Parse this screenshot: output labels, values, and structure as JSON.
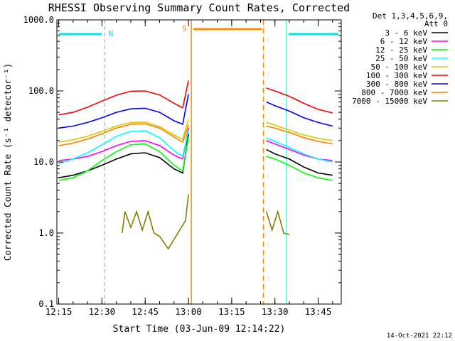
{
  "title": "RHESSI Observing Summary Count Rates, Corrected",
  "footer_date": "14-Oct-2021 22:12",
  "legend": {
    "header_line1": "Det 1,3,4,5,6,9,",
    "header_line2": "Att 0"
  },
  "colors": {
    "night_marker": "#00e5ee",
    "saa_marker": "#ff8c00",
    "axes": "#000000"
  },
  "markers": {
    "night_label": "N",
    "saa_label": "S"
  },
  "chart_data": {
    "type": "line",
    "title": "RHESSI Observing Summary Count Rates, Corrected",
    "xlabel": "Start Time (03-Jun-09 12:14:22)",
    "ylabel": "Corrected Count Rate (s⁻¹ detector⁻¹)",
    "xlim": [
      "12:14:22",
      "13:53:00"
    ],
    "ylim": [
      0.1,
      1000.0
    ],
    "y_scale": "log",
    "x_ticks": [
      "12:15",
      "12:30",
      "12:45",
      "13:00",
      "13:15",
      "13:30",
      "13:45"
    ],
    "y_ticks": [
      "0.1",
      "1.0",
      "10.0",
      "100.0",
      "1000.0"
    ],
    "legend_position": "top-right, outside plot",
    "gaps": [
      [
        "13:01:00",
        "13:27:00"
      ]
    ],
    "night_intervals": [
      [
        "12:14:22",
        "12:31:00"
      ],
      [
        "13:34:00",
        "13:53:00"
      ]
    ],
    "saa_interval": [
      "13:01:00",
      "13:26:00"
    ],
    "series": [
      {
        "name": "3 - 6 keV",
        "color": "#000000",
        "points": [
          [
            "12:15",
            6.0
          ],
          [
            "12:20",
            6.5
          ],
          [
            "12:25",
            7.5
          ],
          [
            "12:30",
            9.0
          ],
          [
            "12:35",
            11.0
          ],
          [
            "12:40",
            13.0
          ],
          [
            "12:45",
            13.5
          ],
          [
            "12:50",
            11.5
          ],
          [
            "12:55",
            8.0
          ],
          [
            "12:58",
            7.0
          ],
          [
            "13:00",
            25.0
          ],
          [
            "13:27",
            15.0
          ],
          [
            "13:30",
            13.0
          ],
          [
            "13:35",
            11.0
          ],
          [
            "13:40",
            8.5
          ],
          [
            "13:45",
            7.0
          ],
          [
            "13:50",
            6.5
          ]
        ]
      },
      {
        "name": "6 - 12 keV",
        "color": "#ff00ff",
        "points": [
          [
            "12:15",
            10.5
          ],
          [
            "12:20",
            11.0
          ],
          [
            "12:25",
            12.0
          ],
          [
            "12:30",
            14.0
          ],
          [
            "12:35",
            17.0
          ],
          [
            "12:40",
            19.5
          ],
          [
            "12:45",
            20.0
          ],
          [
            "12:50",
            17.0
          ],
          [
            "12:55",
            12.5
          ],
          [
            "12:58",
            11.0
          ],
          [
            "13:00",
            30.0
          ],
          [
            "13:27",
            20.0
          ],
          [
            "13:30",
            18.0
          ],
          [
            "13:35",
            15.0
          ],
          [
            "13:40",
            12.5
          ],
          [
            "13:45",
            11.0
          ],
          [
            "13:50",
            10.5
          ]
        ]
      },
      {
        "name": "12 - 25 keV",
        "color": "#00ff00",
        "points": [
          [
            "12:15",
            5.5
          ],
          [
            "12:20",
            6.0
          ],
          [
            "12:25",
            7.5
          ],
          [
            "12:30",
            10.5
          ],
          [
            "12:35",
            14.0
          ],
          [
            "12:40",
            17.5
          ],
          [
            "12:45",
            18.0
          ],
          [
            "12:50",
            14.0
          ],
          [
            "12:55",
            9.0
          ],
          [
            "12:58",
            7.5
          ],
          [
            "13:00",
            22.0
          ],
          [
            "13:27",
            12.0
          ],
          [
            "13:30",
            11.0
          ],
          [
            "13:35",
            9.0
          ],
          [
            "13:40",
            7.0
          ],
          [
            "13:45",
            6.0
          ],
          [
            "13:50",
            5.5
          ]
        ]
      },
      {
        "name": "25 - 50 keV",
        "color": "#00ffff",
        "points": [
          [
            "12:15",
            9.5
          ],
          [
            "12:20",
            11.0
          ],
          [
            "12:25",
            13.5
          ],
          [
            "12:30",
            17.5
          ],
          [
            "12:35",
            23.0
          ],
          [
            "12:40",
            27.0
          ],
          [
            "12:45",
            27.5
          ],
          [
            "12:50",
            22.0
          ],
          [
            "12:55",
            14.5
          ],
          [
            "12:58",
            12.0
          ],
          [
            "13:00",
            28.0
          ],
          [
            "13:27",
            22.0
          ],
          [
            "13:30",
            19.5
          ],
          [
            "13:35",
            16.0
          ],
          [
            "13:40",
            13.0
          ],
          [
            "13:45",
            11.0
          ],
          [
            "13:50",
            10.0
          ]
        ]
      },
      {
        "name": "50 - 100 keV",
        "color": "#d8c800",
        "points": [
          [
            "12:15",
            19.0
          ],
          [
            "12:20",
            20.5
          ],
          [
            "12:25",
            23.0
          ],
          [
            "12:30",
            27.0
          ],
          [
            "12:35",
            32.0
          ],
          [
            "12:40",
            36.0
          ],
          [
            "12:45",
            36.5
          ],
          [
            "12:50",
            31.5
          ],
          [
            "12:55",
            24.0
          ],
          [
            "12:58",
            21.0
          ],
          [
            "13:00",
            40.0
          ],
          [
            "13:27",
            36.0
          ],
          [
            "13:30",
            33.0
          ],
          [
            "13:35",
            28.0
          ],
          [
            "13:40",
            24.0
          ],
          [
            "13:45",
            21.5
          ],
          [
            "13:50",
            20.0
          ]
        ]
      },
      {
        "name": "100 - 300 keV",
        "color": "#ff0000",
        "points": [
          [
            "12:15",
            46.0
          ],
          [
            "12:20",
            50.0
          ],
          [
            "12:25",
            59.0
          ],
          [
            "12:30",
            72.0
          ],
          [
            "12:35",
            87.0
          ],
          [
            "12:40",
            99.0
          ],
          [
            "12:45",
            100.0
          ],
          [
            "12:50",
            88.0
          ],
          [
            "12:55",
            67.0
          ],
          [
            "12:58",
            58.0
          ],
          [
            "13:00",
            140.0
          ],
          [
            "13:27",
            110.0
          ],
          [
            "13:30",
            100.0
          ],
          [
            "13:35",
            84.0
          ],
          [
            "13:40",
            67.0
          ],
          [
            "13:45",
            55.0
          ],
          [
            "13:50",
            49.0
          ]
        ]
      },
      {
        "name": "300 - 800 keV",
        "color": "#0000ff",
        "points": [
          [
            "12:15",
            30.0
          ],
          [
            "12:20",
            32.0
          ],
          [
            "12:25",
            36.0
          ],
          [
            "12:30",
            42.0
          ],
          [
            "12:35",
            50.0
          ],
          [
            "12:40",
            56.0
          ],
          [
            "12:45",
            57.0
          ],
          [
            "12:50",
            50.0
          ],
          [
            "12:55",
            38.0
          ],
          [
            "12:58",
            34.0
          ],
          [
            "13:00",
            90.0
          ],
          [
            "13:27",
            70.0
          ],
          [
            "13:30",
            62.0
          ],
          [
            "13:35",
            52.0
          ],
          [
            "13:40",
            42.0
          ],
          [
            "13:45",
            36.0
          ],
          [
            "13:50",
            32.0
          ]
        ]
      },
      {
        "name": "800 - 7000 keV",
        "color": "#ff8000",
        "points": [
          [
            "12:15",
            17.0
          ],
          [
            "12:20",
            18.5
          ],
          [
            "12:25",
            21.0
          ],
          [
            "12:30",
            25.0
          ],
          [
            "12:35",
            30.0
          ],
          [
            "12:40",
            34.0
          ],
          [
            "12:45",
            34.5
          ],
          [
            "12:50",
            30.0
          ],
          [
            "12:55",
            22.5
          ],
          [
            "12:58",
            19.0
          ],
          [
            "13:00",
            33.0
          ],
          [
            "13:27",
            32.0
          ],
          [
            "13:30",
            30.0
          ],
          [
            "13:35",
            26.0
          ],
          [
            "13:40",
            22.0
          ],
          [
            "13:45",
            19.5
          ],
          [
            "13:50",
            18.0
          ]
        ]
      },
      {
        "name": "7000 - 15000 keV",
        "color": "#808000",
        "points": [
          [
            "12:37",
            1.0
          ],
          [
            "12:38",
            2.0
          ],
          [
            "12:40",
            1.2
          ],
          [
            "12:42",
            2.0
          ],
          [
            "12:44",
            1.1
          ],
          [
            "12:46",
            2.0
          ],
          [
            "12:48",
            1.0
          ],
          [
            "12:50",
            0.9
          ],
          [
            "12:53",
            0.6
          ],
          [
            "12:59",
            1.5
          ],
          [
            "13:00",
            3.5
          ],
          [
            "13:27",
            2.0
          ],
          [
            "13:29",
            1.1
          ],
          [
            "13:31",
            2.0
          ],
          [
            "13:33",
            1.0
          ],
          [
            "13:35",
            0.95
          ]
        ]
      }
    ]
  }
}
